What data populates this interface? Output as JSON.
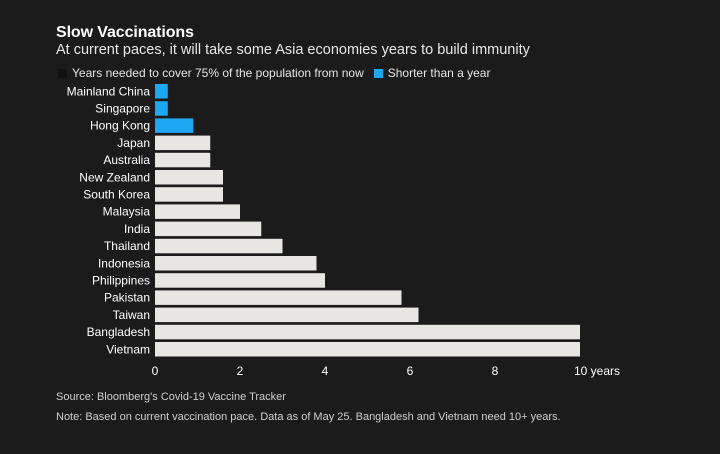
{
  "title": "Slow Vaccinations",
  "subtitle": "At current paces, it will take some Asia economies years to build immunity",
  "legend": [
    {
      "label": "Years needed to cover 75% of the population from now",
      "color": "#111111"
    },
    {
      "label": "Shorter than a year",
      "color": "#1ea7f2"
    }
  ],
  "source": "Source: Bloomberg's Covid-19 Vaccine Tracker",
  "note": "Note: Based on current vaccination pace. Data as of May 25. Bangladesh and Vietnam need 10+ years.",
  "chart_data": {
    "type": "bar",
    "orientation": "horizontal",
    "categories": [
      "Mainland China",
      "Singapore",
      "Hong Kong",
      "Japan",
      "Australia",
      "New Zealand",
      "South Korea",
      "Malaysia",
      "India",
      "Thailand",
      "Indonesia",
      "Philippines",
      "Pakistan",
      "Taiwan",
      "Bangladesh",
      "Vietnam"
    ],
    "values": [
      0.3,
      0.3,
      0.9,
      1.3,
      1.3,
      1.6,
      1.6,
      2.0,
      2.5,
      3.0,
      3.8,
      4.0,
      5.8,
      6.2,
      10,
      10
    ],
    "bar_colors": [
      "#1ea7f2",
      "#1ea7f2",
      "#1ea7f2",
      "#e7e6e3",
      "#e7e6e3",
      "#e7e6e3",
      "#e7e6e3",
      "#e7e6e3",
      "#e7e6e3",
      "#e7e6e3",
      "#e7e6e3",
      "#e7e6e3",
      "#e7e6e3",
      "#e7e6e3",
      "#e7e6e3",
      "#e7e6e3"
    ],
    "xlim": [
      0,
      10
    ],
    "xticks": [
      0,
      2,
      4,
      6,
      8,
      10
    ],
    "xtick_labels": [
      "0",
      "2",
      "4",
      "6",
      "8",
      "10 years"
    ],
    "grid": false
  }
}
